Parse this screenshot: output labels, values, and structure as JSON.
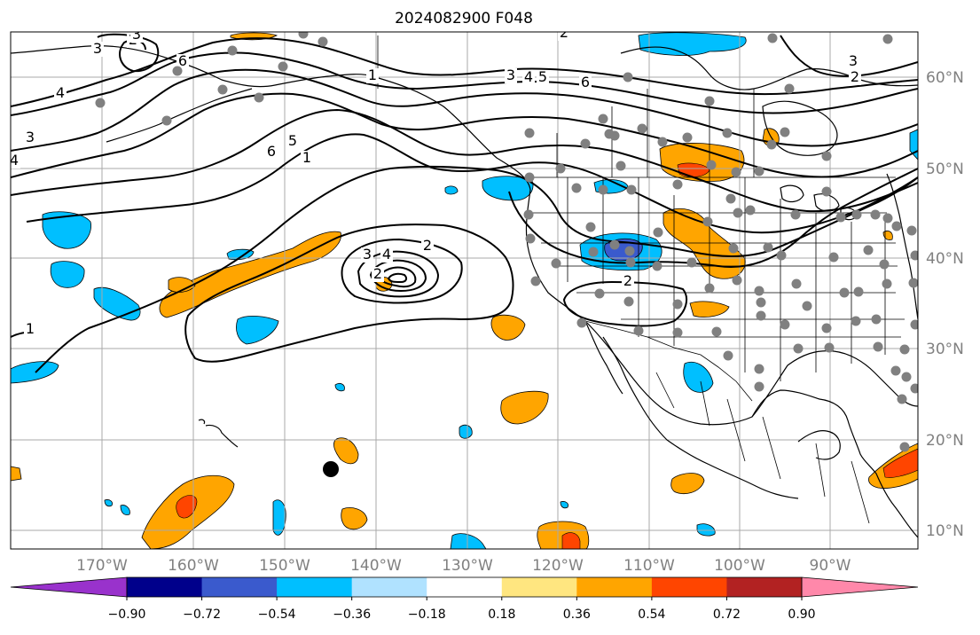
{
  "title": "2024082900 F048",
  "longitude_labels": [
    "170°W",
    "160°W",
    "150°W",
    "140°W",
    "130°W",
    "120°W",
    "110°W",
    "100°W",
    "90°W"
  ],
  "latitude_labels": [
    "60°N",
    "50°N",
    "40°N",
    "30°N",
    "20°N",
    "10°N"
  ],
  "colorbar": {
    "colors": [
      "#9932cc",
      "#00008b",
      "#3a5acd",
      "#00bfff",
      "#b0e2ff",
      "#ffffff",
      "#ffe680",
      "#ffa500",
      "#ff4500",
      "#b22222",
      "#ff88aa"
    ],
    "tick_labels": [
      "−0.90",
      "−0.72",
      "−0.54",
      "−0.36",
      "−0.18",
      "0.18",
      "0.36",
      "0.54",
      "0.72",
      "0.90"
    ]
  },
  "contour_labels": [
    "2",
    "3",
    "6",
    "4",
    "3",
    "6",
    "5",
    "1",
    "3",
    "4",
    "5",
    "6",
    "3",
    "2",
    "1",
    "4",
    "3",
    "2",
    "3",
    "4",
    "2",
    "2",
    "1",
    "2"
  ],
  "colors": {
    "blue": "#00bfff",
    "orange": "#ffa500",
    "red": "#ff4500",
    "navy": "#3a5acd",
    "station": "#808080",
    "grid": "#a9a9a9"
  }
}
